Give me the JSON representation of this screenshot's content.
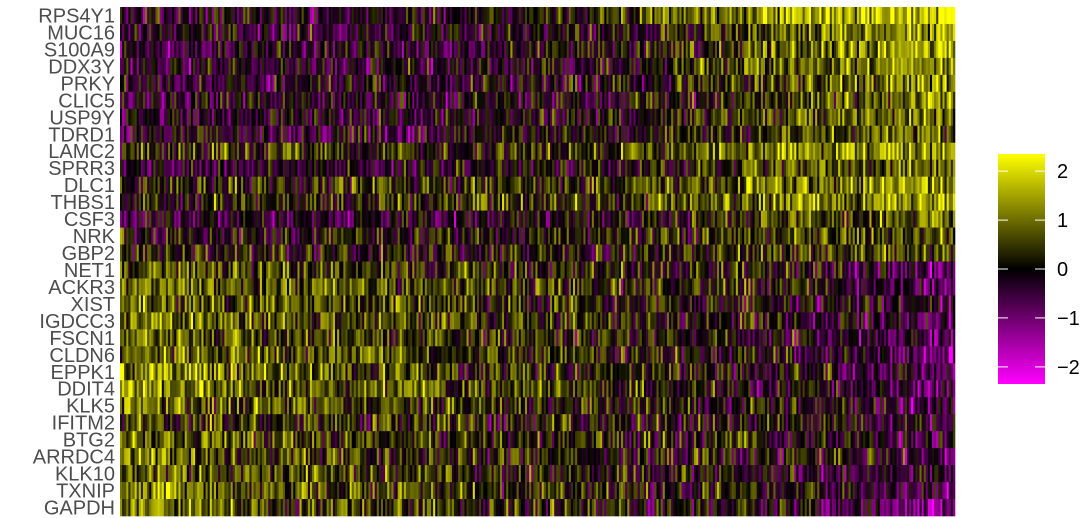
{
  "chart_data": {
    "type": "heatmap",
    "title": "",
    "xlabel": "",
    "ylabel": "",
    "rows": [
      "RPS4Y1",
      "MUC16",
      "S100A9",
      "DDX3Y",
      "PRKY",
      "CLIC5",
      "USP9Y",
      "TDRD1",
      "LAMC2",
      "SPRR3",
      "DLC1",
      "THBS1",
      "CSF3",
      "NRK",
      "GBP2",
      "NET1",
      "ACKR3",
      "XIST",
      "IGDCC3",
      "FSCN1",
      "CLDN6",
      "EPPK1",
      "DDIT4",
      "KLK5",
      "IFITM2",
      "BTG2",
      "ARRDC4",
      "KLK10",
      "TXNIP",
      "GAPDH"
    ],
    "columns_shown": "cells (unlabeled)",
    "row_mean_left_to_right": [
      [
        -0.3,
        -0.2,
        -0.1,
        0.5,
        1.6,
        2.2
      ],
      [
        -0.4,
        -0.3,
        -0.2,
        0.0,
        0.8,
        1.8
      ],
      [
        -0.4,
        -0.3,
        -0.2,
        0.2,
        1.0,
        1.6
      ],
      [
        -0.4,
        -0.3,
        -0.2,
        0.0,
        0.8,
        1.5
      ],
      [
        -0.4,
        -0.3,
        -0.2,
        0.0,
        0.7,
        1.4
      ],
      [
        -0.4,
        -0.3,
        -0.2,
        -0.1,
        0.5,
        1.2
      ],
      [
        -0.4,
        -0.3,
        -0.2,
        0.0,
        0.6,
        1.3
      ],
      [
        -0.3,
        -0.3,
        -0.2,
        -0.1,
        0.5,
        1.0
      ],
      [
        0.5,
        0.4,
        0.3,
        0.5,
        1.2,
        1.6
      ],
      [
        -0.2,
        -0.3,
        -0.2,
        0.0,
        0.6,
        1.0
      ],
      [
        0.4,
        0.3,
        0.4,
        0.6,
        1.2,
        1.4
      ],
      [
        0.3,
        0.3,
        0.4,
        0.5,
        1.2,
        1.6
      ],
      [
        -0.2,
        -0.3,
        -0.2,
        0.0,
        0.6,
        1.0
      ],
      [
        0.0,
        0.0,
        0.1,
        0.2,
        0.6,
        0.9
      ],
      [
        0.2,
        0.1,
        0.1,
        0.2,
        0.5,
        0.6
      ],
      [
        0.9,
        0.6,
        0.4,
        0.3,
        0.1,
        -1.0
      ],
      [
        1.1,
        0.8,
        0.5,
        0.3,
        0.1,
        -0.8
      ],
      [
        1.0,
        0.7,
        0.5,
        0.3,
        0.0,
        -0.7
      ],
      [
        1.2,
        0.8,
        0.6,
        0.3,
        0.0,
        -0.8
      ],
      [
        1.0,
        0.7,
        0.5,
        0.2,
        -0.1,
        -0.9
      ],
      [
        0.9,
        0.8,
        0.5,
        0.2,
        -0.1,
        -1.0
      ],
      [
        1.4,
        0.9,
        0.6,
        0.3,
        0.0,
        -0.7
      ],
      [
        1.6,
        0.9,
        0.6,
        0.3,
        0.0,
        -0.6
      ],
      [
        1.2,
        0.8,
        0.5,
        0.2,
        0.0,
        -0.6
      ],
      [
        0.6,
        0.4,
        0.3,
        0.2,
        0.0,
        -0.3
      ],
      [
        1.0,
        0.5,
        0.4,
        0.2,
        0.0,
        -0.5
      ],
      [
        1.2,
        0.6,
        0.4,
        0.2,
        0.0,
        -0.6
      ],
      [
        0.8,
        0.5,
        0.3,
        0.2,
        0.0,
        -0.5
      ],
      [
        1.4,
        0.8,
        0.5,
        0.3,
        0.0,
        -0.8
      ],
      [
        1.2,
        0.6,
        0.4,
        0.2,
        -0.1,
        -1.3
      ]
    ],
    "color_scale": {
      "low": "#FF00FF",
      "mid": "#000000",
      "high": "#FFFF00",
      "range": [
        -2.5,
        2.5
      ]
    },
    "legend": {
      "position": "right",
      "ticks": [
        {
          "value": 2,
          "label": "2"
        },
        {
          "value": 1,
          "label": "1"
        },
        {
          "value": 0,
          "label": "0"
        },
        {
          "value": -1,
          "label": "−1"
        },
        {
          "value": -2,
          "label": "−2"
        }
      ]
    },
    "grid": false
  }
}
